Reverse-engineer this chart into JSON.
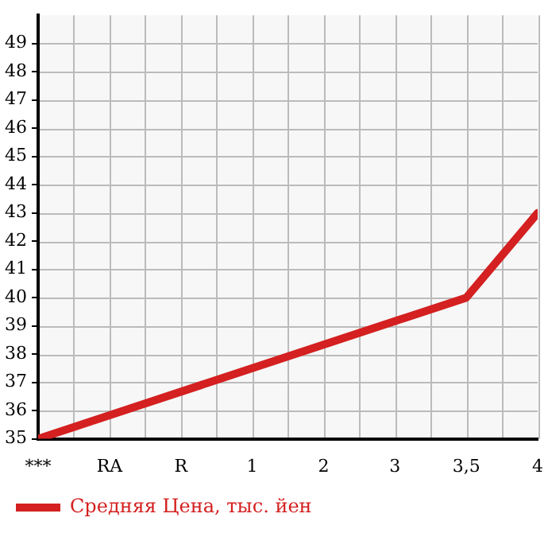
{
  "chart_data": {
    "type": "line",
    "categories": [
      "***",
      "RA",
      "R",
      "1",
      "2",
      "3",
      "3,5",
      "4"
    ],
    "series": [
      {
        "name": "Средняя Цена, тыс. йен",
        "color": "#d42020",
        "values": [
          35,
          null,
          null,
          null,
          null,
          null,
          40,
          43
        ]
      }
    ],
    "ylim": [
      35,
      50
    ],
    "yticks": [
      35,
      36,
      37,
      38,
      39,
      40,
      41,
      42,
      43,
      44,
      45,
      46,
      47,
      48,
      49
    ],
    "grid": true,
    "legend": "bottom left",
    "marker": "none"
  }
}
